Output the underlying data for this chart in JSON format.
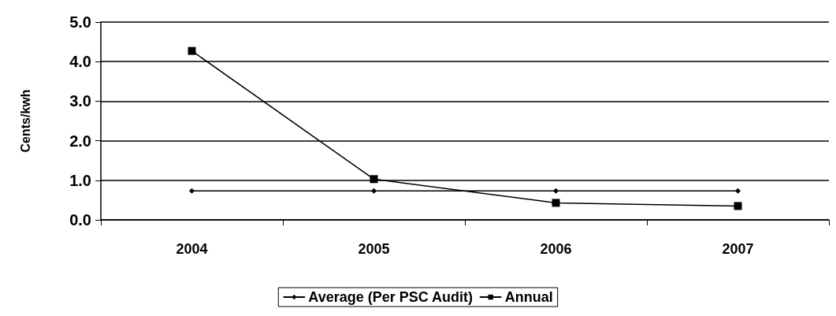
{
  "chart_data": {
    "type": "line",
    "ylabel": "Cents/kwh",
    "categories": [
      "2004",
      "2005",
      "2006",
      "2007"
    ],
    "series": [
      {
        "name": "Average (Per PSC Audit)",
        "color": "#000000",
        "marker": "diamond",
        "values": [
          0.73,
          0.73,
          0.73,
          0.73
        ]
      },
      {
        "name": "Annual",
        "color": "#000000",
        "marker": "square",
        "values": [
          4.27,
          1.03,
          0.43,
          0.35
        ]
      }
    ],
    "ylim": [
      0,
      5
    ],
    "yticks": [
      {
        "value": 0,
        "label": "0.0"
      },
      {
        "value": 1,
        "label": "1.0"
      },
      {
        "value": 2,
        "label": "2.0"
      },
      {
        "value": 3,
        "label": "3.0"
      },
      {
        "value": 4,
        "label": "4.0"
      },
      {
        "value": 5,
        "label": "5.0"
      }
    ],
    "grid": "y",
    "legend": "bottom",
    "line_style": "solid"
  }
}
